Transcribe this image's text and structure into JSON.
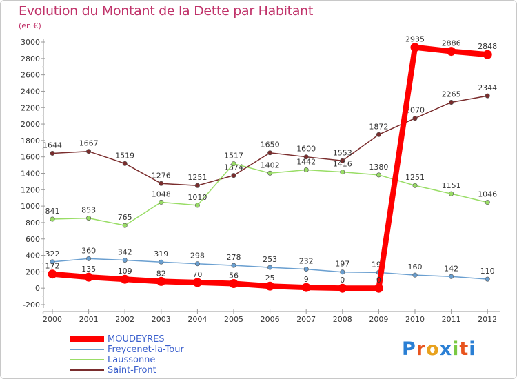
{
  "title": "Evolution du Montant de la Dette par Habitant",
  "subtitle": "(en €)",
  "logo_text": "Proxiti",
  "chart_data": {
    "type": "line",
    "title": "Evolution du Montant de la Dette par Habitant",
    "subtitle": "(en €)",
    "x": [
      "2000",
      "2001",
      "2002",
      "2003",
      "2004",
      "2005",
      "2006",
      "2007",
      "2008",
      "2009",
      "2010",
      "2011",
      "2012"
    ],
    "ylim": [
      -200,
      3000
    ],
    "yticks": [
      -200,
      0,
      200,
      400,
      600,
      800,
      1000,
      1200,
      1400,
      1600,
      1800,
      2000,
      2200,
      2400,
      2600,
      2800,
      3000
    ],
    "grid": false,
    "legend_position": "bottom-left",
    "series": [
      {
        "name": "MOUDEYRES",
        "color": "#ff0000",
        "values": [
          172,
          135,
          109,
          82,
          70,
          56,
          25,
          9,
          0,
          0,
          2935,
          2886,
          2848
        ],
        "labels": [
          "172",
          "135",
          "109",
          "82",
          "70",
          "56",
          "25",
          "9",
          "0",
          "0",
          "2935",
          "2886",
          "2848"
        ]
      },
      {
        "name": "Freycenet-la-Tour",
        "color": "#6a9fd0",
        "values": [
          322,
          360,
          342,
          319,
          298,
          278,
          253,
          232,
          197,
          192,
          160,
          142,
          110
        ],
        "labels": [
          "322",
          "360",
          "342",
          "319",
          "298",
          "278",
          "253",
          "232",
          "197",
          "192",
          "160",
          "142",
          "110"
        ]
      },
      {
        "name": "Laussonne",
        "color": "#99dd66",
        "values": [
          841,
          853,
          765,
          1048,
          1010,
          1517,
          1402,
          1442,
          1416,
          1380,
          1251,
          1151,
          1046
        ],
        "labels": [
          "841",
          "853",
          "765",
          "1048",
          "1010",
          "1517",
          "1402",
          "1442",
          "1416",
          "1380",
          "1251",
          "1151",
          "1046"
        ]
      },
      {
        "name": "Saint-Front",
        "color": "#7a2d2d",
        "values": [
          1644,
          1667,
          1519,
          1276,
          1251,
          1374,
          1650,
          1600,
          1553,
          1872,
          2070,
          2265,
          2344
        ],
        "labels": [
          "1644",
          "1667",
          "1519",
          "1276",
          "1251",
          "1374",
          "1650",
          "1600",
          "1553",
          "1872",
          "2070",
          "2265",
          "2344"
        ]
      }
    ]
  }
}
